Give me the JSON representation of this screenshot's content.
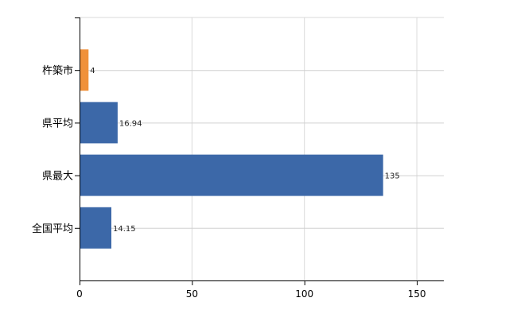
{
  "chart_data": {
    "type": "bar",
    "orientation": "horizontal",
    "title": "",
    "xlabel": "",
    "ylabel": "",
    "categories": [
      "杵築市",
      "県平均",
      "県最大",
      "全国平均"
    ],
    "values": [
      4,
      16.94,
      135,
      14.15
    ],
    "value_labels": [
      "4",
      "16.94",
      "135",
      "14.15"
    ],
    "colors": [
      "#f0913a",
      "#3c68a8",
      "#3c68a8",
      "#3c68a8"
    ],
    "xlim": [
      0,
      162
    ],
    "xticks": [
      0,
      50,
      100,
      150
    ],
    "xtick_labels": [
      "0",
      "50",
      "100",
      "150"
    ],
    "grid": true,
    "legend": "none"
  }
}
